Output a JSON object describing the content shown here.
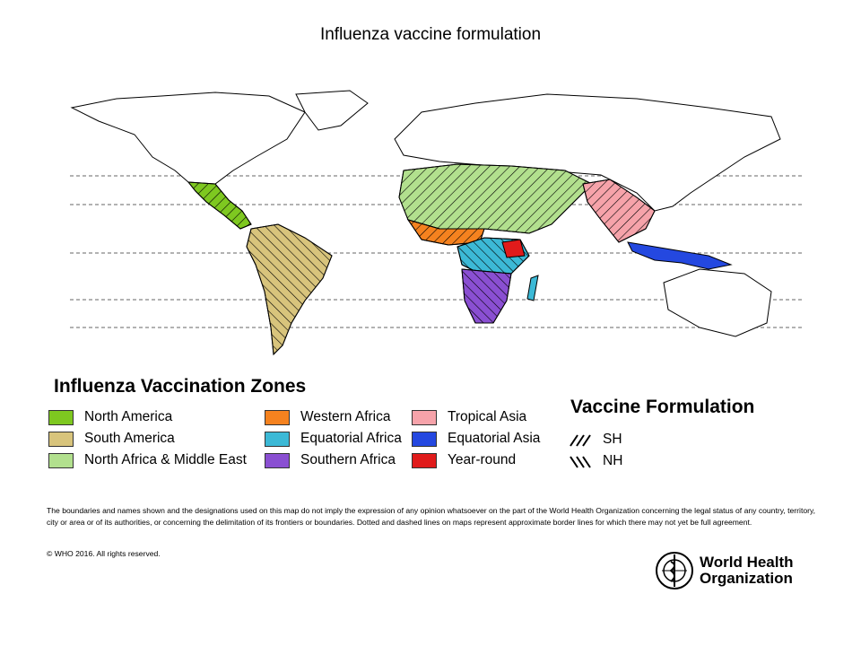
{
  "title": "Influenza vaccine formulation",
  "legend": {
    "zones_title": "Influenza Vaccination Zones",
    "zones": [
      {
        "label": "North America",
        "color": "#7ec820"
      },
      {
        "label": "South America",
        "color": "#d8c47c"
      },
      {
        "label": "North Africa & Middle East",
        "color": "#b2e08e"
      },
      {
        "label": "Western Africa",
        "color": "#f5821f"
      },
      {
        "label": "Equatorial Africa",
        "color": "#3cb9d6"
      },
      {
        "label": "Southern Africa",
        "color": "#8a4fd2"
      },
      {
        "label": "Tropical Asia",
        "color": "#f6a3aa"
      },
      {
        "label": "Equatorial Asia",
        "color": "#2448e0"
      },
      {
        "label": "Year-round",
        "color": "#e01b1b"
      }
    ],
    "formulation_title": "Vaccine Formulation",
    "formulations": [
      {
        "label": "SH",
        "pattern": "forward-hatch"
      },
      {
        "label": "NH",
        "pattern": "backward-hatch"
      }
    ]
  },
  "disclaimer": "The boundaries and names shown and the designations used on this map do not imply the expression of any opinion whatsoever on the part of the World Health Organization concerning the legal status of any country, territory, city or area or of its authorities, or concerning the delimitation of its frontiers or boundaries. Dotted and dashed lines on maps represent approximate border lines for which there may not yet be full agreement.",
  "copyright": "© WHO 2016. All rights reserved.",
  "logo": {
    "line1": "World Health",
    "line2": "Organization"
  }
}
